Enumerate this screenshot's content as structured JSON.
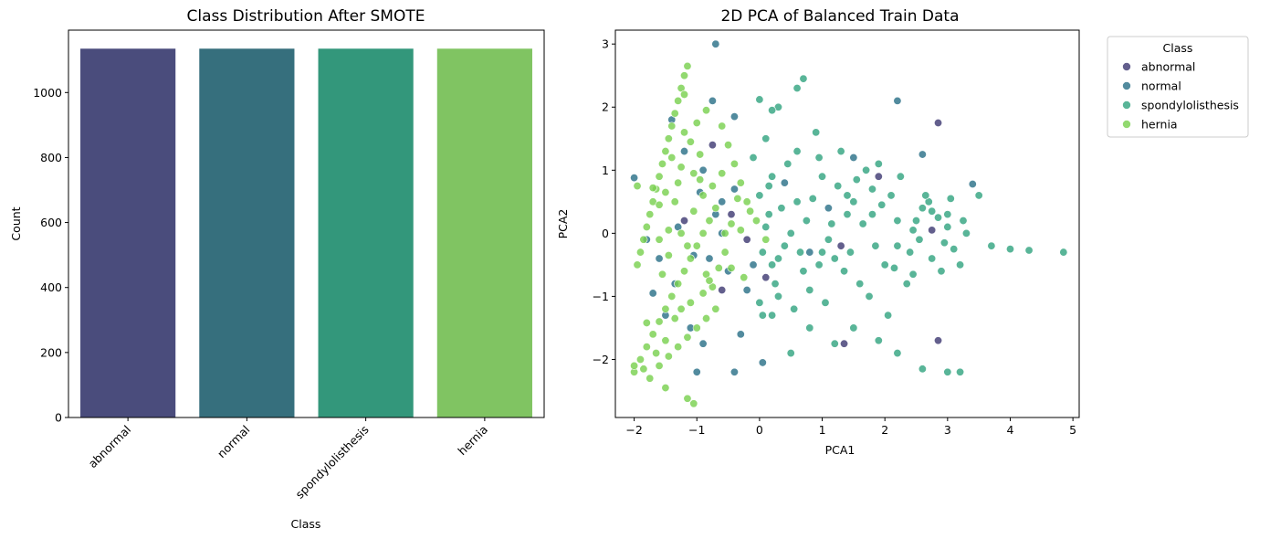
{
  "chart_data": [
    {
      "type": "bar",
      "title": "Class Distribution After SMOTE",
      "xlabel": "Class",
      "ylabel": "Count",
      "categories": [
        "abnormal",
        "normal",
        "spondylolisthesis",
        "hernia"
      ],
      "values": [
        1135,
        1135,
        1135,
        1135
      ],
      "colors": [
        "#4a4c7c",
        "#366f7d",
        "#33977b",
        "#80c462"
      ],
      "ylim": [
        0,
        1192
      ],
      "yticks": [
        "0",
        "200",
        "400",
        "600",
        "800",
        "1000"
      ],
      "grid": false
    },
    {
      "type": "scatter",
      "title": "2D PCA of Balanced Train Data",
      "xlabel": "PCA1",
      "ylabel": "PCA2",
      "xlim": [
        -2.3,
        5.1
      ],
      "ylim": [
        -2.92,
        3.22
      ],
      "xticks": [
        "−2",
        "−1",
        "0",
        "1",
        "2",
        "3",
        "4",
        "5"
      ],
      "yticks": [
        "−2",
        "−1",
        "0",
        "1",
        "2",
        "3"
      ],
      "legend": {
        "title": "Class",
        "position": "outside upper right"
      },
      "grid": false,
      "series": [
        {
          "name": "abnormal",
          "color": "#413c74",
          "points": [
            [
              -0.75,
              1.4
            ],
            [
              -0.2,
              -0.1
            ],
            [
              -0.45,
              0.3
            ],
            [
              1.3,
              -0.2
            ],
            [
              1.35,
              -1.75
            ],
            [
              2.75,
              0.05
            ],
            [
              2.85,
              -1.7
            ],
            [
              2.85,
              1.75
            ],
            [
              -1.2,
              0.2
            ],
            [
              0.1,
              -0.7
            ],
            [
              1.9,
              0.9
            ],
            [
              -0.6,
              -0.9
            ]
          ]
        },
        {
          "name": "normal",
          "color": "#2c7189",
          "points": [
            [
              -0.7,
              3.0
            ],
            [
              -2.0,
              0.88
            ],
            [
              -1.8,
              -0.1
            ],
            [
              -1.6,
              -0.4
            ],
            [
              -1.3,
              0.1
            ],
            [
              -1.1,
              -1.5
            ],
            [
              -0.9,
              -1.75
            ],
            [
              -0.8,
              -0.4
            ],
            [
              -0.6,
              0.0
            ],
            [
              -0.5,
              -0.6
            ],
            [
              -0.4,
              0.7
            ],
            [
              -0.2,
              -0.9
            ],
            [
              -1.0,
              -2.2
            ],
            [
              -0.4,
              -2.2
            ],
            [
              0.05,
              -2.05
            ],
            [
              -0.75,
              2.1
            ],
            [
              -0.4,
              1.85
            ],
            [
              -1.4,
              1.8
            ],
            [
              -1.2,
              1.3
            ],
            [
              -0.9,
              1.0
            ],
            [
              -0.7,
              0.3
            ],
            [
              -1.5,
              -1.3
            ],
            [
              -1.7,
              -0.95
            ],
            [
              -0.3,
              -1.6
            ],
            [
              -0.1,
              -0.5
            ],
            [
              0.4,
              0.8
            ],
            [
              0.8,
              -0.3
            ],
            [
              1.1,
              0.4
            ],
            [
              1.5,
              1.2
            ],
            [
              2.2,
              2.1
            ],
            [
              2.6,
              1.25
            ],
            [
              3.4,
              0.78
            ],
            [
              -0.6,
              0.5
            ],
            [
              -1.35,
              -0.8
            ],
            [
              -0.95,
              0.65
            ],
            [
              -1.05,
              -0.35
            ]
          ]
        },
        {
          "name": "spondylolisthesis",
          "color": "#35a581",
          "points": [
            [
              3.2,
              -2.2
            ],
            [
              3.0,
              -2.2
            ],
            [
              2.6,
              -2.15
            ],
            [
              2.2,
              -1.9
            ],
            [
              1.9,
              -1.7
            ],
            [
              1.5,
              -1.5
            ],
            [
              1.2,
              -1.75
            ],
            [
              0.8,
              -1.5
            ],
            [
              0.5,
              -1.9
            ],
            [
              0.2,
              -1.3
            ],
            [
              3.7,
              -0.2
            ],
            [
              4.0,
              -0.25
            ],
            [
              4.3,
              -0.27
            ],
            [
              4.85,
              -0.3
            ],
            [
              3.5,
              0.6
            ],
            [
              3.3,
              0.0
            ],
            [
              3.0,
              0.3
            ],
            [
              2.7,
              0.5
            ],
            [
              2.4,
              -0.3
            ],
            [
              2.2,
              0.2
            ],
            [
              2.0,
              -0.5
            ],
            [
              1.8,
              0.7
            ],
            [
              1.6,
              -0.8
            ],
            [
              1.4,
              0.3
            ],
            [
              1.2,
              -0.4
            ],
            [
              1.0,
              0.9
            ],
            [
              0.8,
              -0.9
            ],
            [
              0.6,
              0.5
            ],
            [
              0.4,
              -0.2
            ],
            [
              0.2,
              0.9
            ],
            [
              0.0,
              -1.1
            ],
            [
              0.1,
              1.5
            ],
            [
              0.3,
              2.0
            ],
            [
              0.6,
              2.3
            ],
            [
              0.7,
              2.45
            ],
            [
              0.0,
              2.12
            ],
            [
              0.2,
              1.95
            ],
            [
              0.9,
              1.6
            ],
            [
              1.3,
              1.3
            ],
            [
              1.7,
              1.0
            ],
            [
              2.1,
              0.6
            ],
            [
              2.5,
              0.2
            ],
            [
              2.9,
              -0.6
            ],
            [
              3.2,
              -0.5
            ],
            [
              1.9,
              1.1
            ],
            [
              1.5,
              0.5
            ],
            [
              1.1,
              -0.1
            ],
            [
              0.7,
              -0.6
            ],
            [
              0.3,
              -1.0
            ],
            [
              0.05,
              -0.3
            ],
            [
              0.15,
              0.3
            ],
            [
              0.45,
              1.1
            ],
            [
              0.55,
              -1.2
            ],
            [
              0.95,
              1.2
            ],
            [
              1.05,
              -1.1
            ],
            [
              1.25,
              0.75
            ],
            [
              1.45,
              -0.3
            ],
            [
              1.65,
              0.15
            ],
            [
              1.75,
              -1.0
            ],
            [
              1.95,
              0.45
            ],
            [
              2.05,
              -1.3
            ],
            [
              2.25,
              0.9
            ],
            [
              2.35,
              -0.8
            ],
            [
              2.45,
              0.05
            ],
            [
              2.55,
              -0.1
            ],
            [
              2.65,
              0.6
            ],
            [
              2.75,
              -0.4
            ],
            [
              2.85,
              0.25
            ],
            [
              2.95,
              -0.15
            ],
            [
              3.05,
              0.55
            ],
            [
              3.1,
              -0.25
            ],
            [
              3.25,
              0.2
            ],
            [
              0.0,
              0.6
            ],
            [
              0.1,
              0.1
            ],
            [
              0.2,
              -0.5
            ],
            [
              0.35,
              0.4
            ],
            [
              0.5,
              0.0
            ],
            [
              0.65,
              -0.3
            ],
            [
              0.75,
              0.2
            ],
            [
              0.85,
              0.55
            ],
            [
              0.95,
              -0.5
            ],
            [
              1.15,
              0.15
            ],
            [
              1.35,
              -0.6
            ],
            [
              1.55,
              0.85
            ],
            [
              1.85,
              -0.2
            ],
            [
              2.15,
              -0.55
            ],
            [
              2.45,
              -0.65
            ],
            [
              2.75,
              0.35
            ],
            [
              0.25,
              -0.8
            ],
            [
              0.6,
              1.3
            ],
            [
              1.0,
              -0.3
            ],
            [
              1.4,
              0.6
            ],
            [
              1.8,
              0.3
            ],
            [
              2.2,
              -0.2
            ],
            [
              2.6,
              0.4
            ],
            [
              3.0,
              0.1
            ],
            [
              -0.1,
              1.2
            ],
            [
              0.05,
              -1.3
            ],
            [
              0.15,
              0.75
            ],
            [
              0.3,
              -0.4
            ]
          ]
        },
        {
          "name": "hernia",
          "color": "#7ad151",
          "points": [
            [
              -1.15,
              2.65
            ],
            [
              -1.2,
              2.5
            ],
            [
              -1.25,
              2.3
            ],
            [
              -1.3,
              2.1
            ],
            [
              -1.35,
              1.9
            ],
            [
              -1.4,
              1.7
            ],
            [
              -1.45,
              1.5
            ],
            [
              -1.5,
              1.3
            ],
            [
              -1.55,
              1.1
            ],
            [
              -1.6,
              0.9
            ],
            [
              -1.65,
              0.7
            ],
            [
              -1.7,
              0.5
            ],
            [
              -1.75,
              0.3
            ],
            [
              -1.8,
              0.1
            ],
            [
              -1.85,
              -0.1
            ],
            [
              -1.9,
              -0.3
            ],
            [
              -1.95,
              -0.5
            ],
            [
              -2.0,
              -2.2
            ],
            [
              -1.9,
              -2.0
            ],
            [
              -1.8,
              -1.8
            ],
            [
              -1.7,
              -1.6
            ],
            [
              -1.6,
              -1.4
            ],
            [
              -1.5,
              -1.2
            ],
            [
              -1.4,
              -1.0
            ],
            [
              -1.3,
              -0.8
            ],
            [
              -1.2,
              -0.6
            ],
            [
              -1.1,
              -0.4
            ],
            [
              -1.0,
              -0.2
            ],
            [
              -0.9,
              0.0
            ],
            [
              -0.8,
              0.2
            ],
            [
              -0.7,
              0.4
            ],
            [
              -1.75,
              -2.3
            ],
            [
              -1.6,
              -2.1
            ],
            [
              -1.45,
              -1.95
            ],
            [
              -1.3,
              -1.8
            ],
            [
              -1.15,
              -1.65
            ],
            [
              -1.0,
              -1.5
            ],
            [
              -0.85,
              -1.35
            ],
            [
              -0.7,
              -1.2
            ],
            [
              -1.05,
              -2.7
            ],
            [
              -1.15,
              -2.62
            ],
            [
              -1.5,
              -2.45
            ],
            [
              -1.95,
              0.75
            ],
            [
              -1.7,
              0.72
            ],
            [
              -1.4,
              1.2
            ],
            [
              -1.2,
              1.6
            ],
            [
              -1.0,
              1.75
            ],
            [
              -0.85,
              1.95
            ],
            [
              -0.6,
              1.7
            ],
            [
              -0.5,
              1.4
            ],
            [
              -0.4,
              1.1
            ],
            [
              -0.3,
              0.8
            ],
            [
              -0.2,
              0.5
            ],
            [
              -0.05,
              0.2
            ],
            [
              0.1,
              -0.1
            ],
            [
              -1.35,
              0.5
            ],
            [
              -1.25,
              0.0
            ],
            [
              -1.15,
              -0.2
            ],
            [
              -1.05,
              0.35
            ],
            [
              -0.95,
              0.85
            ],
            [
              -0.85,
              -0.65
            ],
            [
              -0.75,
              -0.85
            ],
            [
              -0.65,
              -0.55
            ],
            [
              -0.55,
              -0.3
            ],
            [
              -0.45,
              0.15
            ],
            [
              -1.6,
              -0.1
            ],
            [
              -1.55,
              -0.65
            ],
            [
              -1.45,
              -0.35
            ],
            [
              -1.35,
              -1.35
            ],
            [
              -1.25,
              -1.2
            ],
            [
              -1.1,
              -1.1
            ],
            [
              -0.9,
              -0.95
            ],
            [
              -0.8,
              -0.75
            ],
            [
              -1.65,
              -1.9
            ],
            [
              -1.5,
              -1.7
            ],
            [
              -1.85,
              -2.15
            ],
            [
              -2.0,
              -2.1
            ],
            [
              -1.8,
              -1.42
            ],
            [
              -0.95,
              1.25
            ],
            [
              -1.1,
              1.45
            ],
            [
              -1.25,
              1.05
            ],
            [
              -1.3,
              0.8
            ],
            [
              -1.05,
              0.95
            ],
            [
              -0.9,
              0.6
            ],
            [
              -0.75,
              0.75
            ],
            [
              -0.6,
              0.95
            ],
            [
              -0.35,
              0.55
            ],
            [
              -0.15,
              0.35
            ],
            [
              -0.45,
              -0.55
            ],
            [
              -0.25,
              -0.7
            ],
            [
              -1.45,
              0.05
            ],
            [
              -1.6,
              0.45
            ],
            [
              -1.5,
              0.65
            ],
            [
              -1.2,
              2.2
            ],
            [
              -0.55,
              0.0
            ],
            [
              -0.3,
              0.05
            ]
          ]
        }
      ]
    }
  ]
}
